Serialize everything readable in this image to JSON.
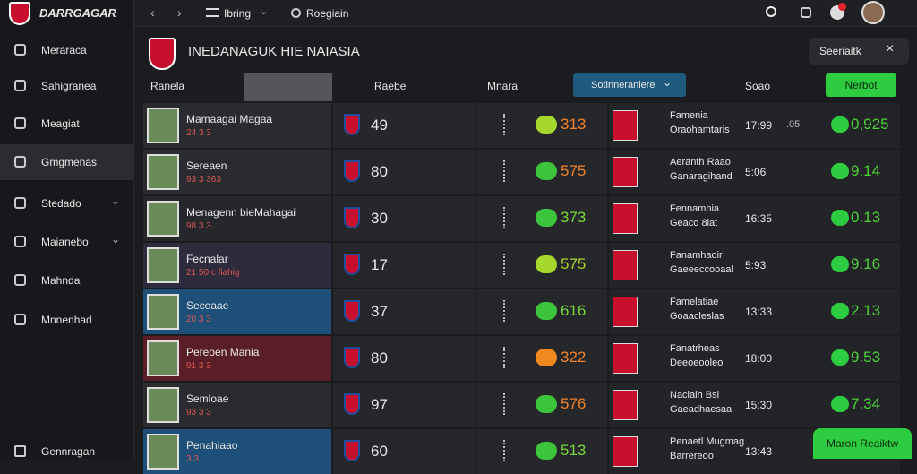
{
  "brand": "DARRGAGAR",
  "topbar": {
    "menu": "Ibring",
    "search": "Roegiain"
  },
  "nav": {
    "items": [
      "Meraraca",
      "Sahigranea",
      "Meagiat",
      "Gmgmenas",
      "Stedado",
      "Maianebo",
      "Mahnda",
      "Mnnenhad"
    ],
    "footer": "Gennragan"
  },
  "header": {
    "title": "INEDANAGUK HIE NAIASIA",
    "search": "Seeriaitk"
  },
  "filters": {
    "first": "Ranela",
    "second": "Raebe",
    "third": "Mnara",
    "dropdown": "Sotinneranlere",
    "fourth": "Soao",
    "button": "Nerbot"
  },
  "rows": [
    {
      "name": "Mamaagai Magaa",
      "sub": "24 3 3",
      "score": "49",
      "rating": "313",
      "rating_color": "#f0822a",
      "pill": "#a6d72c",
      "pname": "Famenia",
      "psub": "Oraohamtaris",
      "time": "17:99",
      "delta": ".05",
      "value": "0,925",
      "bg": "#2a2b2f"
    },
    {
      "name": "Sereaen",
      "sub": "93 3 363",
      "score": "80",
      "rating": "575",
      "rating_color": "#f0822a",
      "pill": "#3cc43c",
      "pname": "Aeranth Raao",
      "psub": "Ganaragihand",
      "time": "5:06",
      "value": "9.14",
      "bg": "#2a2b2f"
    },
    {
      "name": "Menagenn bieMahagai",
      "sub": "98 3 3",
      "score": "30",
      "rating": "373",
      "rating_color": "#7bd83a",
      "pill": "#3cc43c",
      "pname": "Fennamnia",
      "psub": "Geaco 8iat",
      "time": "16:35",
      "value": "0.13",
      "bg": "#26272b"
    },
    {
      "name": "Fecnalar",
      "sub": "21 50 c fiahig",
      "score": "17",
      "rating": "575",
      "rating_color": "#a6d72c",
      "pill": "#a6d72c",
      "pname": "Fanamhaoir",
      "psub": "Gaeeeccooaal",
      "time": "5:93",
      "value": "9.16",
      "bg": "#2e2c3c"
    },
    {
      "name": "Seceaae",
      "sub": "20 3 3",
      "score": "37",
      "rating": "616",
      "rating_color": "#7bd83a",
      "pill": "#3cc43c",
      "pname": "Famelatiae",
      "psub": "Goaacleslas",
      "time": "13:33",
      "value": "2.13",
      "bg": "#1d4f78"
    },
    {
      "name": "Pereoen Mania",
      "sub": "91 3 3",
      "score": "80",
      "rating": "322",
      "rating_color": "#f0822a",
      "pill": "#f08a1e",
      "pname": "Fanatrheas",
      "psub": "Deeoeooleo",
      "time": "18:00",
      "value": "9.53",
      "bg": "#5a1f26"
    },
    {
      "name": "Semloae",
      "sub": "93 3 3",
      "score": "97",
      "rating": "576",
      "rating_color": "#f0822a",
      "pill": "#3cc43c",
      "pname": "Nacialh Bsi",
      "psub": "Gaeadhaesaa",
      "time": "15:30",
      "value": "7.34",
      "bg": "#2a2b2f"
    },
    {
      "name": "Penahiaao",
      "sub": "3 3",
      "score": "60",
      "rating": "513",
      "rating_color": "#7bd83a",
      "pill": "#3cc43c",
      "pname": "Penaetl Mugmag",
      "psub": "Barrereoo",
      "time": "13:43",
      "bg": "#1d4f78"
    }
  ],
  "fab": "Maron Reaiktw"
}
